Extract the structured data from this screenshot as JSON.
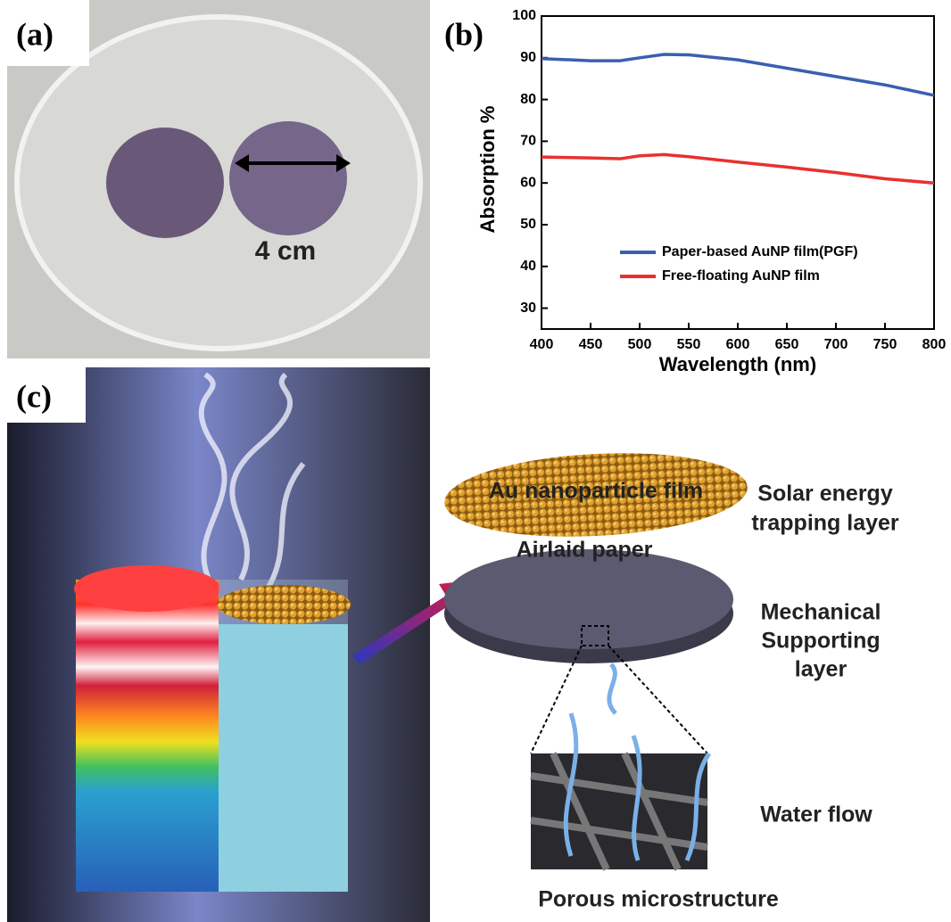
{
  "panel_labels": [
    "(a)",
    "(b)",
    "(c)"
  ],
  "photo": {
    "scale_label": "4 cm"
  },
  "chart_data": {
    "type": "line",
    "x_label": "Wavelength (nm)",
    "y_label": "Absorption %",
    "x": [
      400,
      450,
      480,
      500,
      525,
      550,
      600,
      650,
      700,
      750,
      800
    ],
    "series": [
      {
        "name": "Paper-based AuNP film(PGF)",
        "color": "#3a5fb0",
        "values": [
          89.8,
          89.3,
          89.3,
          90.0,
          90.8,
          90.7,
          89.5,
          87.5,
          85.5,
          83.5,
          81.0
        ]
      },
      {
        "name": "Free-floating AuNP film",
        "color": "#e8312f",
        "values": [
          66.2,
          66.0,
          65.8,
          66.5,
          66.8,
          66.3,
          65.0,
          63.8,
          62.5,
          61.0,
          60.0
        ]
      }
    ],
    "xlim": [
      400,
      800
    ],
    "xticks": [
      400,
      450,
      500,
      550,
      600,
      650,
      700,
      750,
      800
    ],
    "ylim": [
      25,
      100
    ],
    "yticks": [
      30,
      40,
      50,
      60,
      70,
      80,
      90,
      100
    ],
    "grid": false,
    "legend": "lower center"
  },
  "diagram": {
    "film_label": "Au nanoparticle film",
    "film_role": [
      "Solar energy",
      "trapping layer"
    ],
    "paper_label": "Airlaid paper",
    "paper_role": [
      "Mechanical",
      "Supporting",
      "layer"
    ],
    "flow_label": "Water flow",
    "structure_label": "Porous microstructure"
  }
}
